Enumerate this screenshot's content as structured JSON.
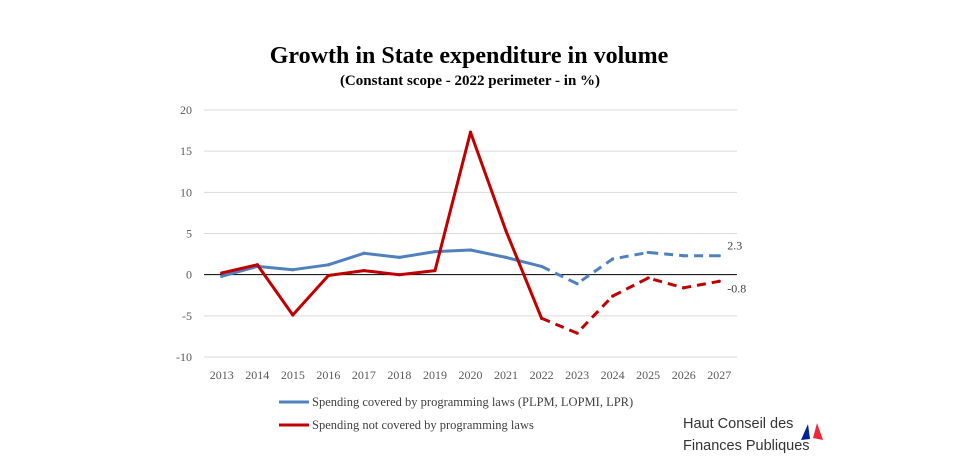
{
  "chart_data": {
    "type": "line",
    "title": "Growth in State expenditure in volume",
    "subtitle": "(Constant scope - 2022 perimeter  - in %)",
    "xlabel": "",
    "ylabel": "",
    "categories": [
      "2013",
      "2014",
      "2015",
      "2016",
      "2017",
      "2018",
      "2019",
      "2020",
      "2021",
      "2022",
      "2023",
      "2024",
      "2025",
      "2026",
      "2027"
    ],
    "ylim": [
      -10,
      20
    ],
    "yticks": [
      "20",
      "15",
      "10",
      "5",
      "0",
      "-5",
      "-10"
    ],
    "grid": true,
    "legend": "bottom",
    "forecast_from": "2022",
    "series": [
      {
        "name": "Spending covered by programming laws (PLPM, LOPMI, LPR)",
        "color": "#4f81bd",
        "values": [
          -0.2,
          1.0,
          0.6,
          1.2,
          2.6,
          2.1,
          2.8,
          3.0,
          2.1,
          1.0,
          -1.1,
          1.9,
          2.7,
          2.3,
          2.3
        ],
        "end_label": "2.3"
      },
      {
        "name": "Spending not covered by programming laws",
        "color": "#c00000",
        "values": [
          0.2,
          1.2,
          -4.9,
          -0.1,
          0.5,
          0.0,
          0.5,
          17.3,
          5.3,
          -5.3,
          -7.1,
          -2.6,
          -0.4,
          -1.6,
          -0.8
        ],
        "end_label": "-0.8"
      }
    ]
  },
  "logo": {
    "line1": "Haut Conseil des",
    "line2": "Finances Publiques",
    "colors": [
      "#002395",
      "#ed2939"
    ]
  }
}
